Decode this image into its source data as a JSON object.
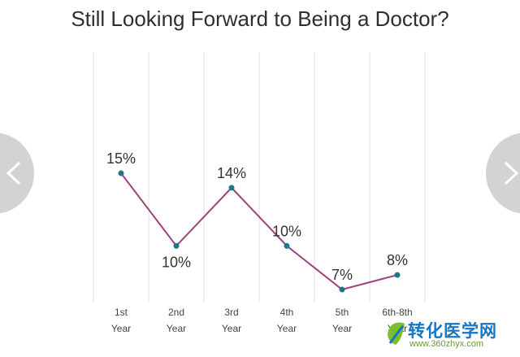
{
  "title": "Still Looking Forward to Being a Doctor?",
  "chart_data": {
    "type": "line",
    "title": "Still Looking Forward to Being a Doctor?",
    "categories": [
      [
        "1st",
        "Year"
      ],
      [
        "2nd",
        "Year"
      ],
      [
        "3rd",
        "Year"
      ],
      [
        "4th",
        "Year"
      ],
      [
        "5th",
        "Year"
      ],
      [
        "6th-8th",
        "Year"
      ]
    ],
    "values": [
      15,
      10,
      14,
      10,
      7,
      8
    ],
    "value_labels": [
      "15%",
      "10%",
      "14%",
      "10%",
      "7%",
      "8%"
    ],
    "ylim": [
      0,
      20
    ],
    "grid": "vertical",
    "line_color": "#a0427d",
    "point_color": "#1b7a86"
  },
  "nav": {
    "left_icon": "chevron-left-icon",
    "right_icon": "chevron-right-icon"
  },
  "watermark": {
    "text": "转化医学网",
    "url": "www.360zhyx.com"
  }
}
